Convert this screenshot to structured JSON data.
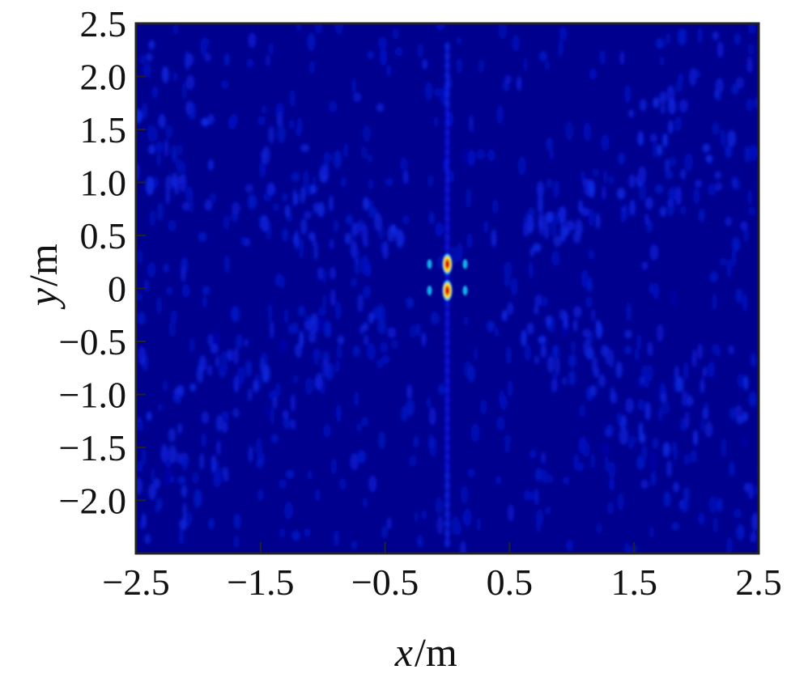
{
  "chart_data": {
    "type": "heatmap",
    "title": "",
    "xlabel": {
      "var": "x",
      "unit": "/m"
    },
    "ylabel": {
      "var": "y",
      "unit": "/m"
    },
    "xlim": [
      -2.5,
      2.5
    ],
    "ylim": [
      -2.5,
      2.5
    ],
    "x_ticks": [
      {
        "value": -2.5,
        "label": "−2.5"
      },
      {
        "value": -1.5,
        "label": "−1.5"
      },
      {
        "value": -0.5,
        "label": "−0.5"
      },
      {
        "value": 0.5,
        "label": "0.5"
      },
      {
        "value": 1.5,
        "label": "1.5"
      },
      {
        "value": 2.5,
        "label": "2.5"
      }
    ],
    "y_ticks": [
      {
        "value": 2.5,
        "label": "2.5"
      },
      {
        "value": 2.0,
        "label": "2.0"
      },
      {
        "value": 1.5,
        "label": "1.5"
      },
      {
        "value": 1.0,
        "label": "1.0"
      },
      {
        "value": 0.5,
        "label": "0.5"
      },
      {
        "value": 0,
        "label": "0"
      },
      {
        "value": -0.5,
        "label": "−0.5"
      },
      {
        "value": -1.0,
        "label": "−1.0"
      },
      {
        "value": -1.5,
        "label": "−1.5"
      },
      {
        "value": -2.0,
        "label": "−2.0"
      }
    ],
    "colormap": "jet",
    "background_color": "#00008f",
    "grid": false,
    "legend": "none",
    "peaks": [
      {
        "x": 0.0,
        "y": 0.23,
        "intensity": 1.0
      },
      {
        "x": 0.0,
        "y": -0.02,
        "intensity": 1.0
      }
    ]
  }
}
